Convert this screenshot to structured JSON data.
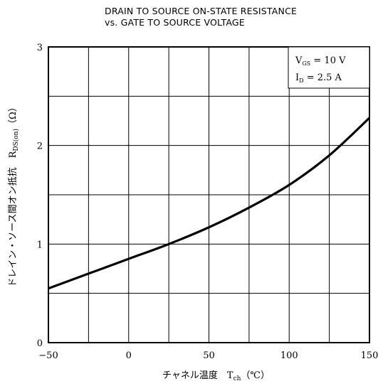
{
  "chart_data": {
    "type": "line",
    "title": "DRAIN TO SOURCE ON-STATE RESISTANCE",
    "subtitle": "vs. GATE TO SOURCE VOLTAGE",
    "xlabel": "チャネル温度　T",
    "xlabel_sub": "ch",
    "xlabel_unit": "（℃）",
    "ylabel": "ドレイン・ソース間オン抵抗　R",
    "ylabel_sub": "DS(on)",
    "ylabel_unit": "（Ω）",
    "xlim": [
      -50,
      150
    ],
    "ylim": [
      0,
      3
    ],
    "x_ticks": [
      "−50",
      "0",
      "50",
      "100",
      "150"
    ],
    "y_ticks": [
      "0",
      "1",
      "2",
      "3"
    ],
    "grid": true,
    "conditions": [
      {
        "label": "V",
        "sub": "GS",
        "value": "= 10  V"
      },
      {
        "label": "I",
        "sub": "D",
        "value": "= 2.5  A"
      }
    ],
    "conditions_placement": "top-right",
    "series": [
      {
        "x": [
          -50,
          -25,
          0,
          25,
          50,
          75,
          100,
          125,
          150
        ],
        "y": [
          0.55,
          0.7,
          0.85,
          1.0,
          1.17,
          1.37,
          1.6,
          1.9,
          2.28
        ]
      }
    ]
  }
}
